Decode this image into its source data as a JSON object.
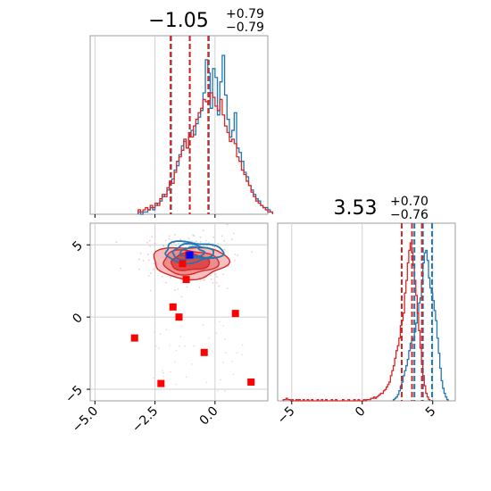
{
  "chart_data": [
    {
      "panel": "marginal-x1",
      "type": "histogram",
      "title": {
        "value": "−1.05",
        "plus": "+0.79",
        "minus": "−0.79"
      },
      "xlim": [
        -5.2,
        2.2
      ],
      "grid": true,
      "series": [
        {
          "name": "blue",
          "color": "#1f77b4",
          "bin_start": -3.2,
          "bin_width": 0.1,
          "counts": [
            1,
            0,
            1,
            1,
            2,
            3,
            2,
            4,
            5,
            6,
            8,
            9,
            11,
            14,
            16,
            20,
            22,
            27,
            31,
            33,
            30,
            35,
            38,
            36,
            41,
            44,
            47,
            55,
            70,
            64,
            48,
            66,
            62,
            45,
            60,
            72,
            54,
            43,
            35,
            38,
            46,
            30,
            28,
            24,
            19,
            17,
            13,
            11,
            9,
            7,
            6,
            4,
            3,
            3,
            2,
            1
          ]
        },
        {
          "name": "red",
          "color": "#d62728",
          "bin_start": -3.2,
          "bin_width": 0.1,
          "counts": [
            2,
            1,
            2,
            3,
            2,
            4,
            3,
            5,
            4,
            7,
            9,
            8,
            12,
            15,
            14,
            19,
            24,
            26,
            29,
            34,
            30,
            37,
            35,
            40,
            43,
            46,
            48,
            52,
            51,
            50,
            55,
            53,
            49,
            47,
            52,
            45,
            40,
            37,
            33,
            34,
            32,
            26,
            24,
            20,
            18,
            15,
            13,
            10,
            8,
            6,
            5,
            4,
            3,
            2,
            1,
            1
          ]
        }
      ],
      "quantiles": {
        "blue": [
          -1.83,
          -1.05,
          -0.26
        ],
        "red": [
          -1.85,
          -1.05,
          -0.28
        ]
      }
    },
    {
      "panel": "joint-x1-x2",
      "type": "scatter",
      "xlim": [
        -5.2,
        2.2
      ],
      "ylim": [
        -5.8,
        6.5
      ],
      "xticks": [
        "−5.0",
        "−2.5",
        "0.0"
      ],
      "xtick_values": [
        -5.0,
        -2.5,
        0.0
      ],
      "yticks": [
        "−5",
        "0",
        "5"
      ],
      "ytick_values": [
        -5,
        0,
        5
      ],
      "grid": true,
      "marker_points": {
        "red": [
          [
            -1.1,
            4.3
          ],
          [
            -1.35,
            3.7
          ],
          [
            -1.2,
            2.6
          ],
          [
            -1.75,
            0.7
          ],
          [
            -1.5,
            0.0
          ],
          [
            0.85,
            0.25
          ],
          [
            -3.35,
            -1.45
          ],
          [
            -0.45,
            -2.45
          ],
          [
            -2.25,
            -4.6
          ],
          [
            1.5,
            -4.5
          ]
        ],
        "blue": [
          [
            -1.05,
            4.3
          ]
        ]
      },
      "contours": {
        "red": {
          "center": [
            -1.05,
            3.8
          ],
          "levels": [
            [
              1.55,
              1.1
            ],
            [
              1.15,
              0.82
            ],
            [
              0.8,
              0.58
            ]
          ]
        },
        "blue": {
          "center": [
            -0.95,
            4.5
          ],
          "levels": [
            [
              1.2,
              0.7
            ],
            [
              0.85,
              0.5
            ],
            [
              0.5,
              0.3
            ]
          ]
        }
      }
    },
    {
      "panel": "marginal-x2",
      "type": "histogram",
      "title": {
        "value": "3.53",
        "plus": "+0.70",
        "minus": "−0.76"
      },
      "xlim": [
        -6.0,
        6.6
      ],
      "xticks": [
        "−5",
        "0",
        "5"
      ],
      "xtick_values": [
        -5,
        0,
        5
      ],
      "grid": true,
      "series": [
        {
          "name": "blue",
          "color": "#1f77b4",
          "bin_start": 2.2,
          "bin_width": 0.1,
          "counts": [
            1,
            2,
            3,
            5,
            8,
            12,
            15,
            20,
            24,
            28,
            33,
            40,
            46,
            50,
            48,
            55,
            62,
            70,
            78,
            82,
            95,
            110,
            118,
            120,
            112,
            98,
            90,
            86,
            80,
            72,
            64,
            50,
            38,
            26,
            16,
            10,
            6,
            3,
            1
          ]
        },
        {
          "name": "red",
          "color": "#d62728",
          "bin_start": -5.6,
          "bin_width": 0.1,
          "counts": [
            1,
            1,
            2,
            1,
            1,
            0,
            1,
            0,
            0,
            1,
            0,
            1,
            0,
            0,
            1,
            0,
            0,
            1,
            0,
            0,
            1,
            0,
            0,
            0,
            1,
            0,
            0,
            1,
            0,
            0,
            1,
            0,
            0,
            0,
            1,
            0,
            0,
            1,
            0,
            0,
            0,
            0,
            1,
            0,
            0,
            0,
            1,
            0,
            0,
            0,
            1,
            0,
            0,
            1,
            0,
            0,
            0,
            1,
            0,
            1,
            1,
            1,
            2,
            2,
            3,
            2,
            3,
            4,
            5,
            6,
            6,
            8,
            9,
            11,
            13,
            15,
            20,
            24,
            28,
            34,
            40,
            44,
            50,
            60,
            64,
            70,
            86,
            96,
            110,
            120,
            126,
            118,
            108,
            96,
            84,
            70,
            56,
            42,
            30,
            20,
            12,
            6,
            3,
            1
          ]
        }
      ],
      "quantiles": {
        "blue": [
          3.7,
          4.3,
          4.95
        ],
        "red": [
          2.8,
          3.53,
          4.23
        ]
      }
    }
  ]
}
